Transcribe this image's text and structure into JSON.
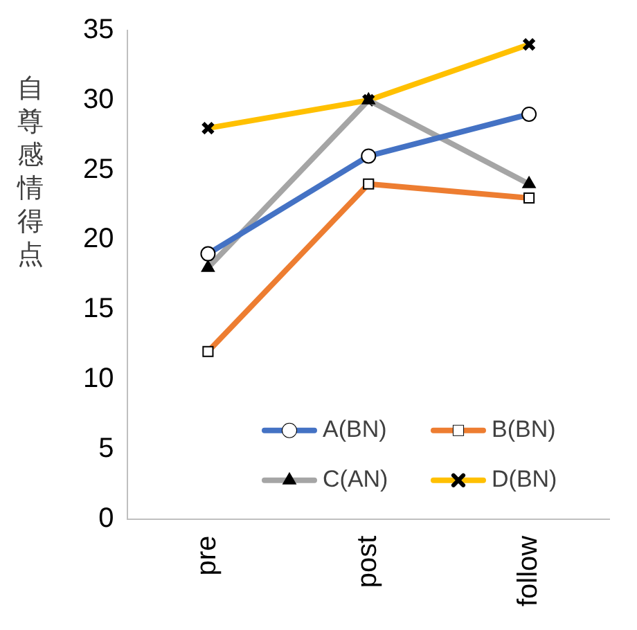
{
  "chart_data": {
    "type": "line",
    "ylabel": "自尊感情得点",
    "categories": [
      "pre",
      "post",
      "follow"
    ],
    "series": [
      {
        "name": "A(BN)",
        "color": "#4472c4",
        "marker": "circle",
        "values": [
          19,
          26,
          29
        ]
      },
      {
        "name": "B(BN)",
        "color": "#ed7d31",
        "marker": "square",
        "values": [
          12,
          24,
          23
        ]
      },
      {
        "name": "C(AN)",
        "color": "#a5a5a5",
        "marker": "triangle",
        "values": [
          18,
          30,
          24
        ]
      },
      {
        "name": "D(BN)",
        "color": "#ffc000",
        "marker": "cross",
        "values": [
          28,
          30,
          34
        ]
      }
    ],
    "ylim": [
      0,
      35
    ],
    "yticks": [
      0,
      5,
      10,
      15,
      20,
      25,
      30,
      35
    ],
    "grid": false,
    "legend": "bottom right"
  }
}
